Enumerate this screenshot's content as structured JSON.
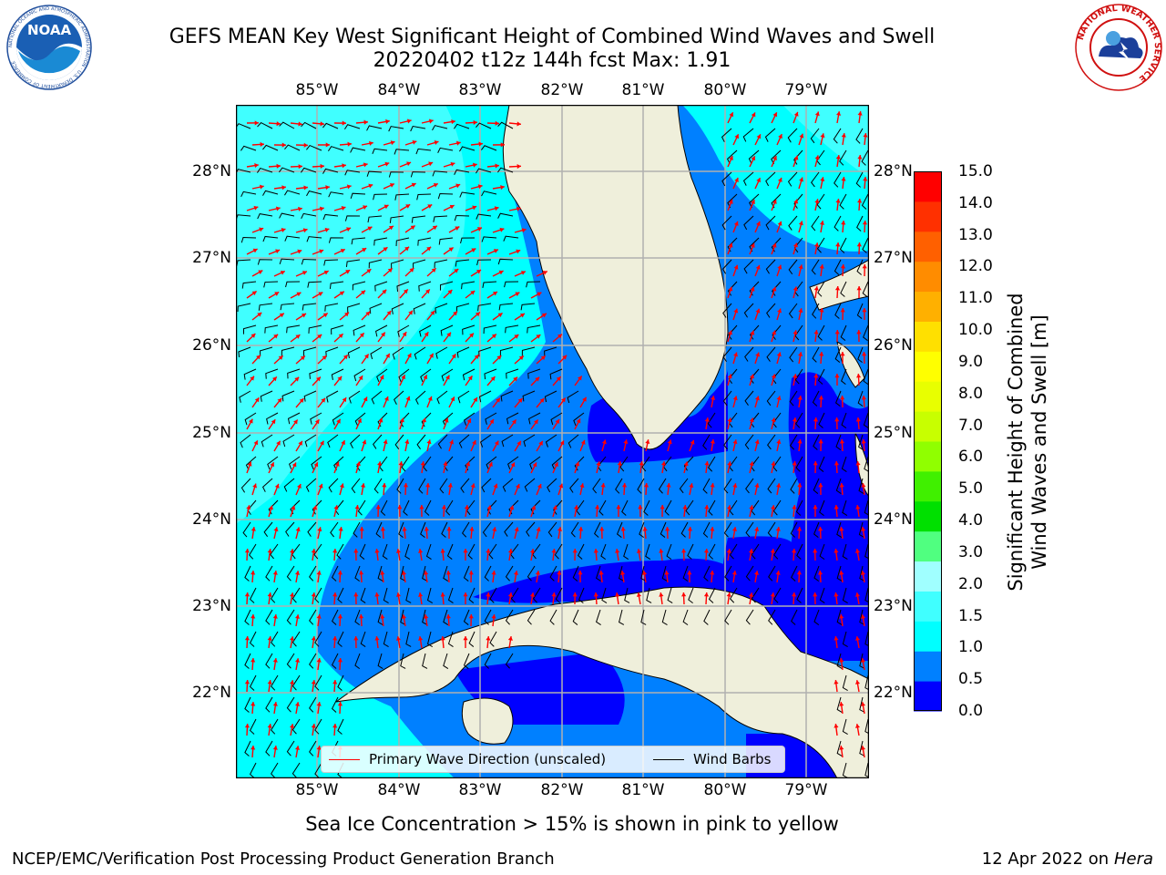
{
  "header": {
    "title_line1": "GEFS MEAN Key West Significant Height of Combined Wind Waves and Swell",
    "title_line2": "20220402 t12z 144h fcst   Max: 1.91"
  },
  "logos": {
    "noaa_text": "NOAA",
    "noaa_ring": "NATIONAL OCEANIC AND ATMOSPHERIC ADMINISTRATION · U.S. DEPARTMENT OF COMMERCE",
    "nws_ring": "NATIONAL WEATHER SERVICE"
  },
  "map": {
    "lon_labels": [
      "85°W",
      "84°W",
      "83°W",
      "82°W",
      "81°W",
      "80°W",
      "79°W"
    ],
    "lat_labels": [
      "28°N",
      "27°N",
      "26°N",
      "25°N",
      "24°N",
      "23°N",
      "22°N"
    ],
    "land_color": "#efefdb",
    "grid_color": "#b0b0b0",
    "wave_arrow_color": "#ff0000",
    "wind_barb_color": "#000000"
  },
  "legend": {
    "wave": "Primary Wave Direction (unscaled)",
    "wind": "Wind Barbs"
  },
  "colorbar": {
    "label_line1": "Significant Height of Combined",
    "label_line2": "Wind Waves and Swell [m]",
    "ticks": [
      "15.0",
      "14.0",
      "13.0",
      "12.0",
      "11.0",
      "10.0",
      "9.0",
      "8.0",
      "7.0",
      "6.0",
      "5.0",
      "4.0",
      "3.0",
      "2.0",
      "1.5",
      "1.0",
      "0.5",
      "0.0"
    ],
    "colors": [
      "#0000ff",
      "#0080ff",
      "#00ffff",
      "#40ffff",
      "#a0ffff",
      "#50ff80",
      "#00e000",
      "#40f000",
      "#90ff00",
      "#c8ff00",
      "#e8ff00",
      "#ffff00",
      "#ffe000",
      "#ffb000",
      "#ff8c00",
      "#ff6000",
      "#ff3000",
      "#ff0000"
    ]
  },
  "notes": {
    "ice": "Sea Ice Concentration > 15% is shown in pink to yellow",
    "org": "NCEP/EMC/Verification Post Processing Product Generation Branch",
    "date": "12 Apr 2022 on ",
    "host": "Hera"
  }
}
